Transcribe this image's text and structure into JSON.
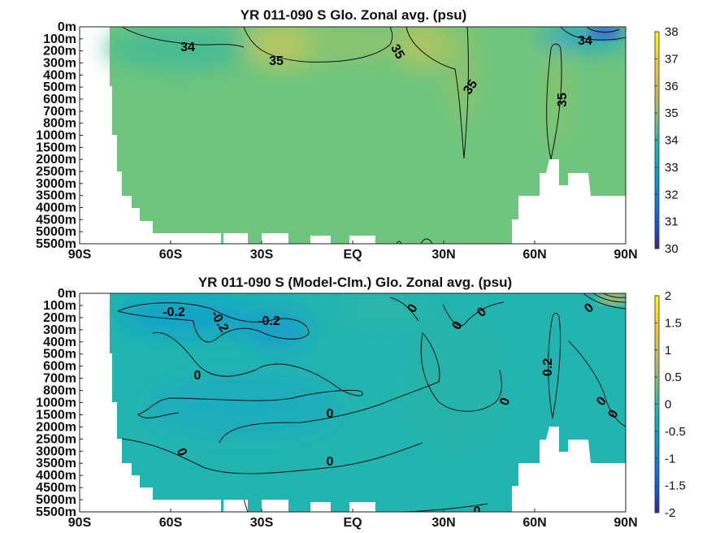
{
  "chart_data": [
    {
      "type": "heatmap",
      "title": "YR 011-090 S Glo. Zonal avg. (psu)",
      "x_ticks": [
        "90S",
        "60S",
        "30S",
        "EQ",
        "30N",
        "60N",
        "90N"
      ],
      "y_ticks": [
        "0m",
        "100m",
        "200m",
        "300m",
        "400m",
        "500m",
        "600m",
        "700m",
        "800m",
        "1000m",
        "1500m",
        "2000m",
        "2500m",
        "3000m",
        "3500m",
        "4000m",
        "4500m",
        "5000m",
        "5500m"
      ],
      "colorbar": {
        "min": 30,
        "max": 38,
        "ticks": [
          "30",
          "31",
          "32",
          "33",
          "34",
          "35",
          "36",
          "37",
          "38"
        ]
      },
      "contour_labels": [
        {
          "text": "34",
          "lat": -50,
          "depth": "200m"
        },
        {
          "text": "35",
          "lat": -22,
          "depth": "300m"
        },
        {
          "text": "35",
          "lat": 10,
          "depth": "200m"
        },
        {
          "text": "35",
          "lat": 32,
          "depth": "500m"
        },
        {
          "text": "35",
          "lat": 62,
          "depth": "600m"
        },
        {
          "text": "34",
          "lat": 75,
          "depth": "100m"
        }
      ]
    },
    {
      "type": "heatmap",
      "title": "YR 011-090 S (Model-Clm.) Glo. Zonal avg. (psu)",
      "x_ticks": [
        "90S",
        "60S",
        "30S",
        "EQ",
        "30N",
        "60N",
        "90N"
      ],
      "y_ticks": [
        "0m",
        "100m",
        "200m",
        "300m",
        "400m",
        "500m",
        "600m",
        "700m",
        "800m",
        "1000m",
        "1500m",
        "2000m",
        "2500m",
        "3000m",
        "3500m",
        "4000m",
        "4500m",
        "5000m",
        "5500m"
      ],
      "colorbar": {
        "min": -2,
        "max": 2,
        "ticks": [
          "2",
          "1.5",
          "1",
          "0.5",
          "0",
          "-0.5",
          "-1",
          "-1.5",
          "-2"
        ]
      },
      "contour_labels": [
        {
          "text": "-0.2",
          "lat": -60,
          "depth": "200m"
        },
        {
          "text": "-0.2",
          "lat": -46,
          "depth": "300m"
        },
        {
          "text": "-0.2",
          "lat": -27,
          "depth": "300m"
        },
        {
          "text": "0",
          "lat": -50,
          "depth": "700m"
        },
        {
          "text": "0",
          "lat": -22,
          "depth": "1500m"
        },
        {
          "text": "0",
          "lat": -70,
          "depth": "3000m"
        },
        {
          "text": "0",
          "lat": -23,
          "depth": "3500m"
        },
        {
          "text": "0",
          "lat": 19,
          "depth": "200m"
        },
        {
          "text": "0",
          "lat": 31,
          "depth": "300m"
        },
        {
          "text": "0",
          "lat": 38,
          "depth": "200m"
        },
        {
          "text": "0",
          "lat": 45,
          "depth": "1000m"
        },
        {
          "text": "0.2",
          "lat": 61,
          "depth": "600m"
        },
        {
          "text": "0",
          "lat": 77,
          "depth": "1000m"
        },
        {
          "text": "0",
          "lat": 80,
          "depth": "1500m"
        },
        {
          "text": "0",
          "lat": 80,
          "depth": "100m"
        },
        {
          "text": "0",
          "lat": 35,
          "depth": "5500m"
        }
      ]
    }
  ]
}
